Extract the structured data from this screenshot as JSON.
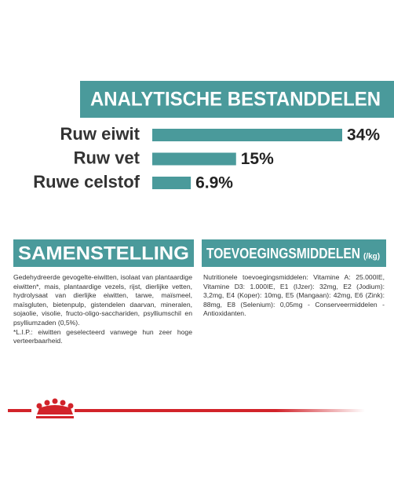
{
  "chart_data": {
    "type": "bar",
    "title": "ANALYTISCHE BESTANDDELEN",
    "categories": [
      "Ruw eiwit",
      "Ruw vet",
      "Ruwe celstof"
    ],
    "values": [
      34,
      15,
      6.9
    ],
    "value_labels": [
      "34%",
      "15%",
      "6.9%"
    ],
    "color": "#4a9a9b"
  },
  "composition": {
    "title": "SAMENSTELLING",
    "text": "Gedehydreerde gevogelte-eiwitten, isolaat van plantaardige eiwitten*, mais, plantaardige vezels, rijst, dierlijke vetten, hydrolysaat van dierlijke eiwitten, tarwe, maïsmeel, maïsgluten, bietenpulp, gistendelen daarvan, mineralen, sojaolie, visolie, fructo-oligo-sacchariden, psylliumschil en psylliumzaden (0,5%).",
    "note": "*L.I.P.: eiwitten geselecteerd vanwege hun zeer hoge verteerbaarheid."
  },
  "additives": {
    "title": "TOEVOEGINGSMIDDELEN",
    "unit": "(/kg)",
    "text": "Nutritionele toevoegingsmiddelen: Vitamine A: 25.000IE, Vitamine D3: 1.000IE, E1 (IJzer): 32mg, E2 (Jodium): 3,2mg, E4 (Koper): 10mg, E5 (Mangaan): 42mg, E6 (Zink): 88mg, E8 (Selenium): 0,05mg - Conserveermiddelen - Antioxidanten."
  }
}
